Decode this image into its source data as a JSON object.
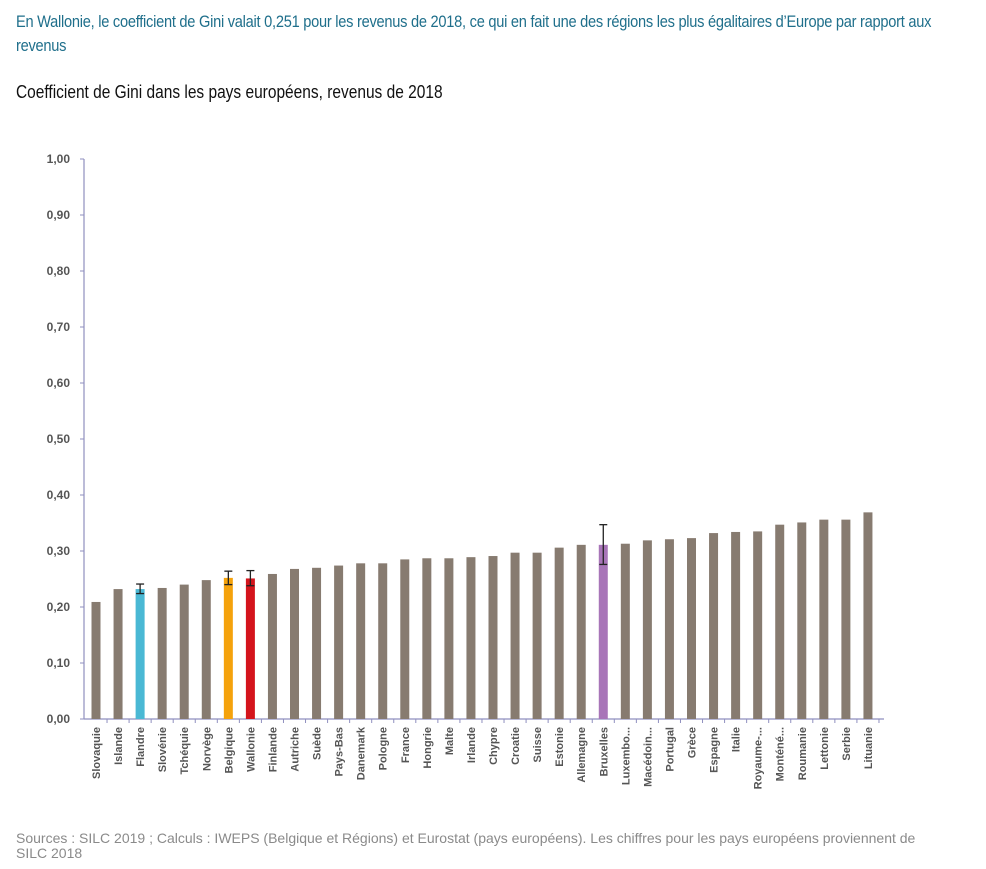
{
  "headline": "En Wallonie, le coefficient de Gini valait 0,251 pour les revenus de 2018, ce qui en fait une des régions les plus égalitaires d’Europe par rapport aux revenus",
  "chart_data": {
    "type": "bar",
    "title": "Coefficient de Gini dans les pays européens, revenus de 2018",
    "xlabel": "",
    "ylabel": "",
    "ylim": [
      0,
      1
    ],
    "yticks": [
      "0,00",
      "0,10",
      "0,20",
      "0,30",
      "0,40",
      "0,50",
      "0,60",
      "0,70",
      "0,80",
      "0,90",
      "1,00"
    ],
    "grid": false,
    "categories": [
      "Slovaquie",
      "Islande",
      "Flandre",
      "Slovénie",
      "Tchéquie",
      "Norvège",
      "Belgique",
      "Wallonie",
      "Finlande",
      "Autriche",
      "Suède",
      "Pays-Bas",
      "Danemark",
      "Pologne",
      "France",
      "Hongrie",
      "Malte",
      "Irlande",
      "Chypre",
      "Croatie",
      "Suisse",
      "Estonie",
      "Allemagne",
      "Bruxelles",
      "Luxembo...",
      "Macédoin...",
      "Portugal",
      "Grèce",
      "Espagne",
      "Italie",
      "Royaume-...",
      "Monténé...",
      "Roumanie",
      "Lettonie",
      "Serbie",
      "Lituanie"
    ],
    "values": [
      0.209,
      0.232,
      0.232,
      0.234,
      0.24,
      0.248,
      0.252,
      0.251,
      0.259,
      0.268,
      0.27,
      0.274,
      0.278,
      0.278,
      0.285,
      0.287,
      0.287,
      0.289,
      0.291,
      0.297,
      0.297,
      0.306,
      0.311,
      0.311,
      0.313,
      0.319,
      0.321,
      0.323,
      0.332,
      0.334,
      0.335,
      0.347,
      0.351,
      0.356,
      0.356,
      0.369
    ],
    "error_bars": {
      "Flandre": [
        0.224,
        0.241
      ],
      "Belgique": [
        0.24,
        0.264
      ],
      "Wallonie": [
        0.238,
        0.265
      ],
      "Bruxelles": [
        0.276,
        0.347
      ]
    },
    "colors": {
      "default": "#877b70",
      "Flandre": "#4ab8d4",
      "Belgique": "#f5a20b",
      "Wallonie": "#d4141c",
      "Bruxelles": "#a875b8",
      "axis": "#8f8fbf"
    }
  },
  "source": "Sources : SILC 2019 ; Calculs : IWEPS (Belgique et Régions) et Eurostat (pays européens). Les chiffres pour les pays européens proviennent de SILC 2018"
}
